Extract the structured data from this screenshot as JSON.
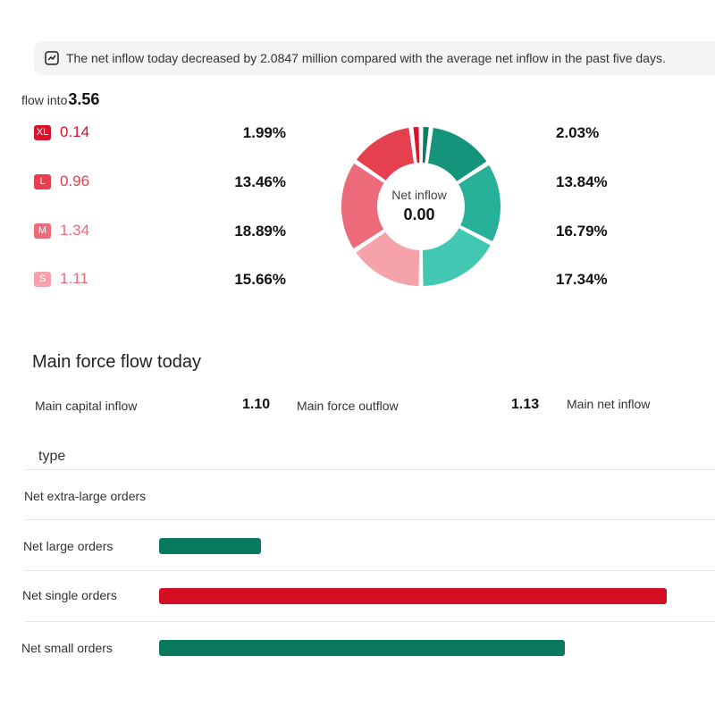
{
  "banner": {
    "icon": "trend-chart-icon",
    "text": "The net inflow today decreased by 2.0847 million compared with the average net inflow in the past five days."
  },
  "flow_into": {
    "label": "flow into",
    "value": "3.56"
  },
  "inflow_rows": [
    {
      "tag": "XL",
      "value": "0.14",
      "pct_in": "1.99%",
      "pct_out": "2.03%"
    },
    {
      "tag": "L",
      "value": "0.96",
      "pct_in": "13.46%",
      "pct_out": "13.84%"
    },
    {
      "tag": "M",
      "value": "1.34",
      "pct_in": "18.89%",
      "pct_out": "16.79%"
    },
    {
      "tag": "S",
      "value": "1.11",
      "pct_in": "15.66%",
      "pct_out": "17.34%"
    }
  ],
  "colors": {
    "xl": "#d7142b",
    "l": "#e5404f",
    "m": "#ec6a7a",
    "s": "#f6a2ab",
    "out_xl": "#0e7a60",
    "out_l": "#13947b",
    "out_m": "#26b098",
    "out_s": "#42c7b2",
    "bar_green": "#0a7a5e",
    "bar_red": "#d40f24"
  },
  "donut": {
    "label": "Net inflow",
    "value": "0.00"
  },
  "main_force": {
    "title": "Main force flow today",
    "capital_inflow_label": "Main capital inflow",
    "capital_inflow_value": "1.10",
    "outflow_label": "Main force outflow",
    "outflow_value": "1.13",
    "net_inflow_label": "Main net inflow"
  },
  "orders": {
    "header": "type",
    "rows": [
      {
        "label": "Net extra-large orders",
        "fraction": 0
      },
      {
        "label": "Net large orders",
        "fraction": 0.2
      },
      {
        "label": "Net single orders",
        "fraction": 1.0
      },
      {
        "label": "Net small orders",
        "fraction": 0.8
      }
    ]
  }
}
